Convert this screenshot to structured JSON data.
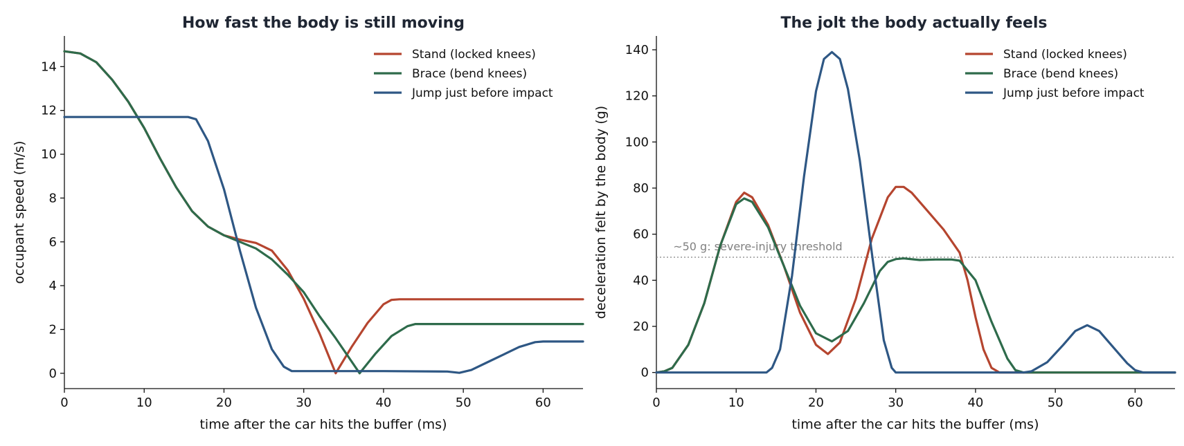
{
  "colors": {
    "stand": "#b5452f",
    "brace": "#2e6b4b",
    "jump": "#2e5784",
    "threshold": "#808080"
  },
  "chart_data": [
    {
      "type": "line",
      "title": "How fast the body is still moving",
      "xlabel": "time after the car hits the buffer (ms)",
      "ylabel": "occupant speed (m/s)",
      "xlim": [
        0,
        65
      ],
      "ylim": [
        -0.7,
        15.4
      ],
      "xticks": [
        0,
        10,
        20,
        30,
        40,
        50,
        60
      ],
      "yticks": [
        0,
        2,
        4,
        6,
        8,
        10,
        12,
        14
      ],
      "legend_position": "top-right",
      "series": [
        {
          "name": "Stand (locked knees)",
          "color_key": "stand",
          "x": [
            0,
            2,
            4,
            6,
            8,
            10,
            12,
            14,
            16,
            18,
            20,
            22,
            24,
            26,
            28,
            30,
            32,
            34,
            36,
            38,
            40,
            41,
            42,
            50,
            60,
            65
          ],
          "y": [
            14.7,
            14.6,
            14.2,
            13.4,
            12.4,
            11.2,
            9.8,
            8.5,
            7.4,
            6.7,
            6.3,
            6.1,
            5.95,
            5.6,
            4.7,
            3.4,
            1.8,
            0.0,
            1.2,
            2.3,
            3.15,
            3.35,
            3.38,
            3.38,
            3.38,
            3.38
          ]
        },
        {
          "name": "Brace (bend knees)",
          "color_key": "brace",
          "x": [
            0,
            2,
            4,
            6,
            8,
            10,
            12,
            14,
            16,
            18,
            20,
            22,
            24,
            26,
            28,
            30,
            32,
            34,
            37,
            39,
            41,
            43,
            44,
            50,
            60,
            65
          ],
          "y": [
            14.7,
            14.6,
            14.2,
            13.4,
            12.4,
            11.2,
            9.8,
            8.5,
            7.4,
            6.7,
            6.3,
            6.0,
            5.7,
            5.2,
            4.5,
            3.7,
            2.6,
            1.6,
            0.0,
            0.9,
            1.7,
            2.15,
            2.25,
            2.25,
            2.25,
            2.25
          ]
        },
        {
          "name": "Jump just before impact",
          "color_key": "jump",
          "x": [
            0,
            14,
            15.5,
            16.5,
            18,
            20,
            22,
            24,
            26,
            27.5,
            28.5,
            30,
            40,
            48,
            49.5,
            51,
            53,
            55,
            57,
            59,
            60,
            65
          ],
          "y": [
            11.7,
            11.7,
            11.7,
            11.6,
            10.6,
            8.4,
            5.6,
            3.0,
            1.1,
            0.3,
            0.1,
            0.1,
            0.1,
            0.08,
            0.02,
            0.15,
            0.5,
            0.85,
            1.2,
            1.42,
            1.45,
            1.45
          ]
        }
      ]
    },
    {
      "type": "line",
      "title": "The jolt the body actually feels",
      "xlabel": "time after the car hits the buffer (ms)",
      "ylabel": "deceleration felt by the body (g)",
      "xlim": [
        0,
        65
      ],
      "ylim": [
        -7,
        146
      ],
      "xticks": [
        0,
        10,
        20,
        30,
        40,
        50,
        60
      ],
      "yticks": [
        0,
        20,
        40,
        60,
        80,
        100,
        120,
        140
      ],
      "legend_position": "top-right",
      "threshold": {
        "value": 50,
        "label": "~50 g: severe-injury threshold"
      },
      "series": [
        {
          "name": "Stand (locked knees)",
          "color_key": "stand",
          "x": [
            0,
            1,
            2,
            4,
            6,
            8,
            10,
            11,
            12,
            14,
            16,
            18,
            20,
            21.5,
            23,
            25,
            27,
            29,
            30,
            31,
            32,
            34,
            36,
            38,
            39,
            40,
            41,
            42,
            43,
            50,
            60,
            65
          ],
          "y": [
            0,
            0.5,
            2,
            12,
            30,
            55,
            74,
            78,
            76,
            64,
            46,
            26,
            12,
            8,
            13,
            32,
            58,
            76,
            80.5,
            80.5,
            78,
            70,
            62,
            52,
            40,
            24,
            10,
            2,
            0,
            0,
            0,
            0
          ]
        },
        {
          "name": "Brace (bend knees)",
          "color_key": "brace",
          "x": [
            0,
            1,
            2,
            4,
            6,
            8,
            10,
            11,
            12,
            14,
            16,
            18,
            20,
            22,
            24,
            26,
            28,
            29,
            30,
            31,
            33,
            35,
            37,
            38,
            40,
            42,
            44,
            45,
            46,
            50,
            60,
            65
          ],
          "y": [
            0,
            0.5,
            2,
            12,
            30,
            55,
            73,
            75.5,
            74,
            63,
            46,
            29,
            17,
            13.5,
            18,
            30,
            44,
            48,
            49.2,
            49.5,
            48.8,
            49,
            49,
            48.5,
            40,
            22,
            6,
            1,
            0,
            0,
            0,
            0
          ]
        },
        {
          "name": "Jump just before impact",
          "color_key": "jump",
          "x": [
            0,
            13.8,
            14.5,
            15.5,
            17,
            18.5,
            20,
            21,
            22,
            23,
            24,
            25.5,
            27,
            28.5,
            29.5,
            30,
            40,
            46,
            47,
            49,
            51,
            52.5,
            54,
            55.5,
            57,
            59,
            60,
            61,
            65
          ],
          "y": [
            0,
            0,
            2,
            10,
            42,
            85,
            122,
            136,
            139,
            136,
            123,
            92,
            52,
            14,
            2,
            0,
            0,
            0,
            0.5,
            4.5,
            12,
            18,
            20.5,
            18,
            12,
            4,
            1,
            0,
            0
          ]
        }
      ]
    }
  ]
}
